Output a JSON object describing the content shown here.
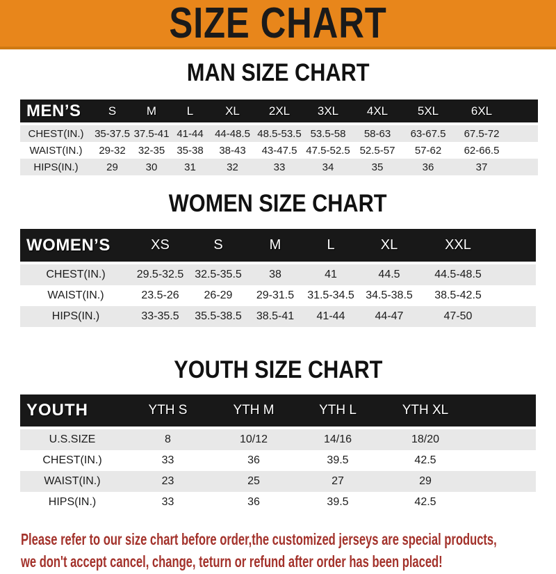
{
  "banner": {
    "title": "SIZE CHART"
  },
  "colors": {
    "banner_bg": "#E8861B",
    "banner_border": "#CF7A12",
    "table_header_bg": "#181818",
    "table_header_text": "#FFFFFF",
    "row_alt_bg": "#E8E8E8",
    "body_text": "#1C1C1C",
    "note_text": "#A3322B"
  },
  "sections": [
    {
      "id": "men",
      "heading": "MAN SIZE CHART",
      "table": {
        "header": [
          "MEN’S",
          "S",
          "M",
          "L",
          "XL",
          "2XL",
          "3XL",
          "4XL",
          "5XL",
          "6XL"
        ],
        "rows": [
          [
            "CHEST(IN.)",
            "35-37.5",
            "37.5-41",
            "41-44",
            "44-48.5",
            "48.5-53.5",
            "53.5-58",
            "58-63",
            "63-67.5",
            "67.5-72"
          ],
          [
            "WAIST(IN.)",
            "29-32",
            "32-35",
            "35-38",
            "38-43",
            "43-47.5",
            "47.5-52.5",
            "52.5-57",
            "57-62",
            "62-66.5"
          ],
          [
            "HIPS(IN.)",
            "29",
            "30",
            "31",
            "32",
            "33",
            "34",
            "35",
            "36",
            "37"
          ]
        ]
      }
    },
    {
      "id": "women",
      "heading": "WOMEN SIZE CHART",
      "table": {
        "header": [
          "WOMEN’S",
          "XS",
          "S",
          "M",
          "L",
          "XL",
          "XXL"
        ],
        "rows": [
          [
            "CHEST(IN.)",
            "29.5-32.5",
            "32.5-35.5",
            "38",
            "41",
            "44.5",
            "44.5-48.5"
          ],
          [
            "WAIST(IN.)",
            "23.5-26",
            "26-29",
            "29-31.5",
            "31.5-34.5",
            "34.5-38.5",
            "38.5-42.5"
          ],
          [
            "HIPS(IN.)",
            "33-35.5",
            "35.5-38.5",
            "38.5-41",
            "41-44",
            "44-47",
            "47-50"
          ]
        ]
      }
    },
    {
      "id": "youth",
      "heading": "YOUTH SIZE CHART",
      "table": {
        "header": [
          "YOUTH",
          "YTH S",
          "YTH M",
          "YTH L",
          "YTH XL"
        ],
        "rows": [
          [
            "U.S.SIZE",
            "8",
            "10/12",
            "14/16",
            "18/20"
          ],
          [
            "CHEST(IN.)",
            "33",
            "36",
            "39.5",
            "42.5"
          ],
          [
            "WAIST(IN.)",
            "23",
            "25",
            "27",
            "29"
          ],
          [
            "HIPS(IN.)",
            "33",
            "36",
            "39.5",
            "42.5"
          ]
        ]
      }
    }
  ],
  "note": {
    "line1": "Please refer to our size chart before order,the customized jerseys are special products,",
    "line2": "we don't accept cancel, change, teturn or refund after order has been placed!"
  }
}
